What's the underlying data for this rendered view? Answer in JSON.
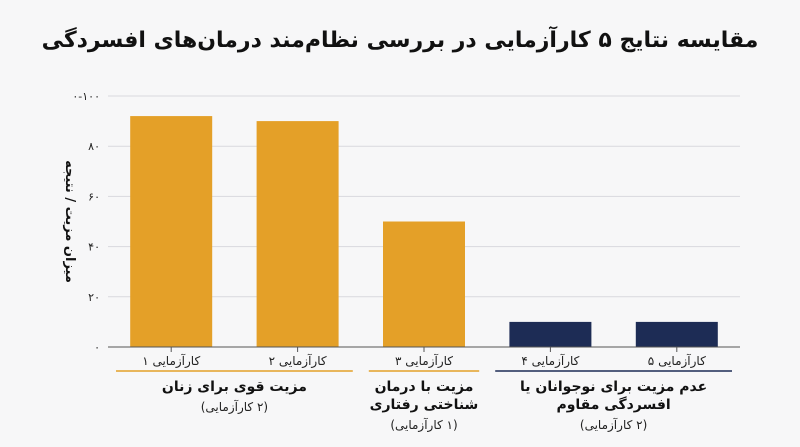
{
  "chart_data": {
    "type": "bar",
    "title": "مقایسه نتایج ۵ کارآزمایی در بررسی نظام‌مند درمان‌های افسردگی",
    "ylabel": "میزان مزیت / نتیجه",
    "xlabel": "",
    "ylim": [
      0,
      100
    ],
    "y_ticks": [
      {
        "value": 0,
        "label": "۰"
      },
      {
        "value": 20,
        "label": "۲۰"
      },
      {
        "value": 40,
        "label": "۴۰"
      },
      {
        "value": 60,
        "label": "۶۰"
      },
      {
        "value": 80,
        "label": "۸۰"
      },
      {
        "value": 100,
        "label": "۰-۱۰۰"
      }
    ],
    "grid": true,
    "categories": [
      "کارآزمایی ۱",
      "کارآزمایی ۲",
      "کارآزمایی ۳",
      "کارآزمایی ۴",
      "کارآزمایی ۵"
    ],
    "values": [
      92,
      90,
      50,
      10,
      10
    ],
    "bar_colors": [
      "#e4a028",
      "#e4a028",
      "#e4a028",
      "#1d2c55",
      "#1d2c55"
    ],
    "groups": [
      {
        "title": "مزیت قوی برای زنان",
        "note": "(۲ کارآزمایی)",
        "categories": [
          0,
          1
        ],
        "color": "#e4a028"
      },
      {
        "title": "مزیت با درمان شناختی رفتاری",
        "note": "(۱ کارآزمایی)",
        "categories": [
          2
        ],
        "color": "#e4a028"
      },
      {
        "title": "عدم مزیت برای نوجوانان یا افسردگی مقاوم",
        "note": "(۲ کارآزمایی)",
        "categories": [
          3,
          4
        ],
        "color": "#1d2c55"
      }
    ]
  }
}
